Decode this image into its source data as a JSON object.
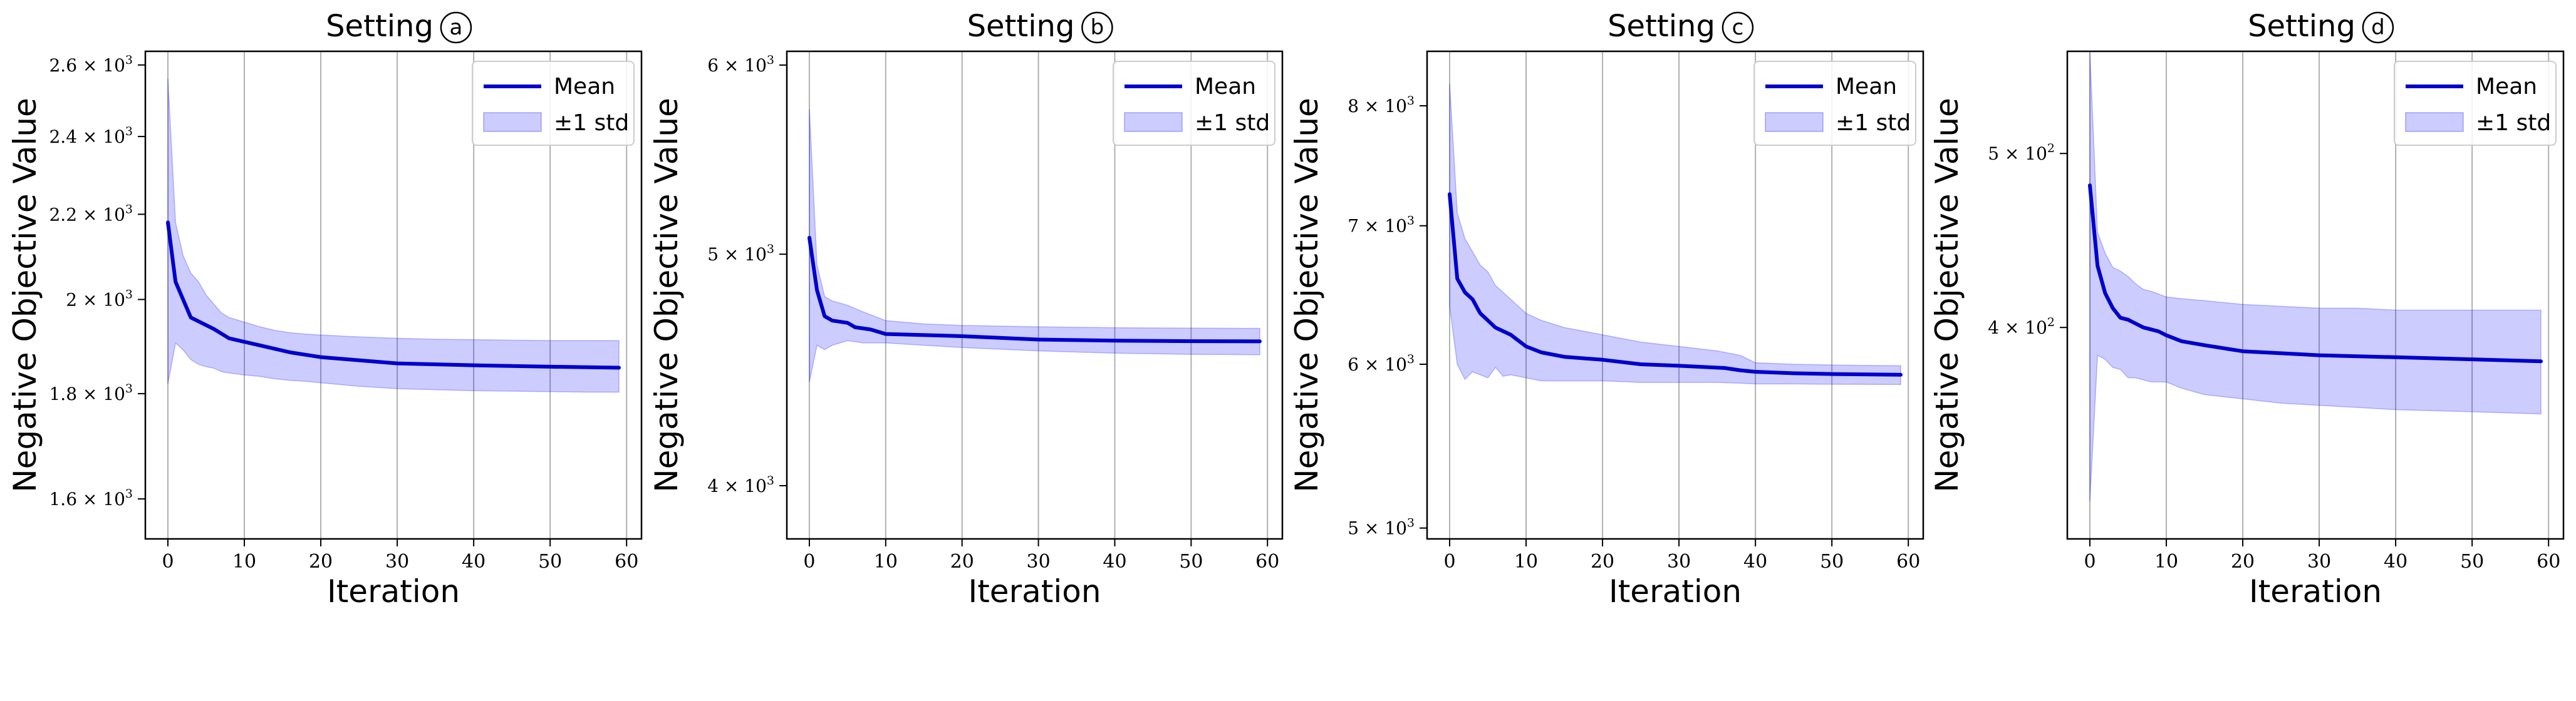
{
  "chart_data": [
    {
      "type": "line",
      "title": "Setting",
      "title_marker": "a",
      "xlabel": "Iteration",
      "ylabel": "Negative Objective Value",
      "yscale": "log",
      "xlim": [
        -2.95,
        61.95
      ],
      "ylim": [
        1530,
        2640
      ],
      "xticks": [
        0,
        10,
        20,
        30,
        40,
        50,
        60
      ],
      "yticks": [
        {
          "value": 1600,
          "mantissa": "1.6"
        },
        {
          "value": 1800,
          "mantissa": "1.8"
        },
        {
          "value": 2000,
          "mantissa": "2"
        },
        {
          "value": 2200,
          "mantissa": "2.2"
        },
        {
          "value": 2400,
          "mantissa": "2.4"
        },
        {
          "value": 2600,
          "mantissa": "2.6"
        }
      ],
      "grid": "x",
      "legend": {
        "position": "upper-right",
        "entries": [
          "Mean",
          "±1 std"
        ]
      },
      "series": [
        {
          "name": "Mean",
          "color": "#0000cc",
          "x": [
            0,
            1,
            3,
            6,
            8,
            12,
            16,
            20,
            30,
            40,
            50,
            59
          ],
          "y": [
            2180,
            2040,
            1960,
            1935,
            1915,
            1900,
            1885,
            1875,
            1862,
            1858,
            1855,
            1853
          ]
        },
        {
          "name": "±1 std",
          "color": "#0000ff",
          "fill_opacity": 0.2,
          "x": [
            0,
            1,
            2,
            3,
            4,
            5,
            6,
            7,
            8,
            9,
            10,
            12,
            14,
            16,
            18,
            20,
            25,
            30,
            35,
            40,
            45,
            50,
            55,
            59
          ],
          "upper": [
            2560,
            2180,
            2100,
            2060,
            2040,
            2010,
            1990,
            1970,
            1960,
            1955,
            1950,
            1940,
            1932,
            1927,
            1924,
            1922,
            1918,
            1915,
            1913,
            1912,
            1911,
            1910,
            1910,
            1910
          ],
          "lower": [
            1820,
            1905,
            1890,
            1870,
            1860,
            1855,
            1852,
            1845,
            1842,
            1840,
            1838,
            1835,
            1830,
            1827,
            1825,
            1822,
            1815,
            1810,
            1808,
            1806,
            1805,
            1804,
            1803,
            1803
          ]
        }
      ]
    },
    {
      "type": "line",
      "title": "Setting",
      "title_marker": "b",
      "xlabel": "Iteration",
      "ylabel": "Negative Objective Value",
      "yscale": "log",
      "xlim": [
        -2.95,
        61.95
      ],
      "ylim": [
        3800,
        6080
      ],
      "xticks": [
        0,
        10,
        20,
        30,
        40,
        50,
        60
      ],
      "yticks": [
        {
          "value": 4000,
          "mantissa": "4"
        },
        {
          "value": 5000,
          "mantissa": "5"
        },
        {
          "value": 6000,
          "mantissa": "6"
        }
      ],
      "grid": "x",
      "legend": {
        "position": "upper-right",
        "entries": [
          "Mean",
          "±1 std"
        ]
      },
      "series": [
        {
          "name": "Mean",
          "color": "#0000cc",
          "x": [
            0,
            1,
            2,
            3,
            5,
            6,
            8,
            10,
            20,
            30,
            40,
            50,
            59
          ],
          "y": [
            5080,
            4830,
            4710,
            4690,
            4680,
            4660,
            4650,
            4630,
            4620,
            4605,
            4600,
            4598,
            4597
          ]
        },
        {
          "name": "±1 std",
          "color": "#0000ff",
          "fill_opacity": 0.2,
          "x": [
            0,
            1,
            2,
            3,
            5,
            7,
            10,
            15,
            20,
            30,
            40,
            50,
            59
          ],
          "upper": [
            5750,
            4950,
            4800,
            4780,
            4760,
            4730,
            4690,
            4675,
            4668,
            4662,
            4658,
            4656,
            4655
          ],
          "lower": [
            4420,
            4580,
            4560,
            4580,
            4600,
            4590,
            4590,
            4580,
            4570,
            4555,
            4545,
            4540,
            4538
          ]
        }
      ]
    },
    {
      "type": "line",
      "title": "Setting",
      "title_marker": "c",
      "xlabel": "Iteration",
      "ylabel": "Negative Objective Value",
      "yscale": "log",
      "xlim": [
        -2.95,
        61.95
      ],
      "ylim": [
        4940,
        8500
      ],
      "xticks": [
        0,
        10,
        20,
        30,
        40,
        50,
        60
      ],
      "yticks": [
        {
          "value": 5000,
          "mantissa": "5"
        },
        {
          "value": 6000,
          "mantissa": "6"
        },
        {
          "value": 7000,
          "mantissa": "7"
        },
        {
          "value": 8000,
          "mantissa": "8"
        }
      ],
      "grid": "x",
      "legend": {
        "position": "upper-right",
        "entries": [
          "Mean",
          "±1 std"
        ]
      },
      "series": [
        {
          "name": "Mean",
          "color": "#0000cc",
          "x": [
            0,
            1,
            2,
            3,
            4,
            5,
            6,
            8,
            10,
            12,
            15,
            20,
            25,
            30,
            36,
            38,
            40,
            45,
            50,
            59
          ],
          "y": [
            7250,
            6600,
            6500,
            6450,
            6350,
            6300,
            6250,
            6200,
            6120,
            6080,
            6050,
            6030,
            6000,
            5990,
            5975,
            5960,
            5950,
            5940,
            5935,
            5930
          ]
        },
        {
          "name": "±1 std",
          "color": "#0000ff",
          "fill_opacity": 0.2,
          "x": [
            0,
            1,
            2,
            3,
            4,
            5,
            6,
            7,
            8,
            10,
            12,
            15,
            20,
            25,
            30,
            35,
            38,
            40,
            45,
            50,
            59
          ],
          "upper": [
            8200,
            7100,
            6900,
            6800,
            6700,
            6650,
            6550,
            6500,
            6450,
            6350,
            6300,
            6250,
            6200,
            6150,
            6120,
            6090,
            6060,
            6010,
            6000,
            5995,
            5990
          ],
          "lower": [
            6400,
            6000,
            5900,
            5950,
            5930,
            5910,
            5980,
            5920,
            5930,
            5910,
            5890,
            5890,
            5890,
            5880,
            5880,
            5880,
            5875,
            5870,
            5870,
            5868,
            5866
          ]
        }
      ]
    },
    {
      "type": "line",
      "title": "Setting",
      "title_marker": "d",
      "xlabel": "Iteration",
      "ylabel": "Negative Objective Value",
      "yscale": "log",
      "xlim": [
        -2.95,
        61.95
      ],
      "ylim": [
        305,
        570
      ],
      "xticks": [
        0,
        10,
        20,
        30,
        40,
        50,
        60
      ],
      "yticks": [
        {
          "value": 400,
          "mantissa": "4"
        },
        {
          "value": 500,
          "mantissa": "5"
        }
      ],
      "grid": "x",
      "legend": {
        "position": "upper-right",
        "entries": [
          "Mean",
          "±1 std"
        ]
      },
      "series": [
        {
          "name": "Mean",
          "color": "#0000cc",
          "x": [
            0,
            1,
            2,
            3,
            4,
            5,
            6,
            7,
            8,
            9,
            10,
            12,
            15,
            20,
            25,
            30,
            40,
            50,
            59
          ],
          "y": [
            480,
            433,
            418,
            410,
            405,
            404,
            402,
            400,
            399,
            398,
            396,
            393,
            391,
            388,
            387,
            386,
            385,
            384,
            383
          ]
        },
        {
          "name": "±1 std",
          "color": "#0000ff",
          "fill_opacity": 0.2,
          "x": [
            0,
            1,
            2,
            3,
            4,
            5,
            6,
            7,
            8,
            10,
            12,
            15,
            20,
            25,
            30,
            35,
            40,
            50,
            59
          ],
          "upper": [
            570,
            452,
            440,
            432,
            430,
            427,
            423,
            420,
            419,
            416,
            415,
            414,
            412,
            411,
            410,
            410,
            409,
            409,
            409
          ],
          "lower": [
            320,
            386,
            384,
            380,
            379,
            375,
            375,
            374,
            373,
            373,
            370,
            367,
            365,
            363,
            362,
            361,
            360,
            359,
            358
          ]
        }
      ]
    }
  ]
}
